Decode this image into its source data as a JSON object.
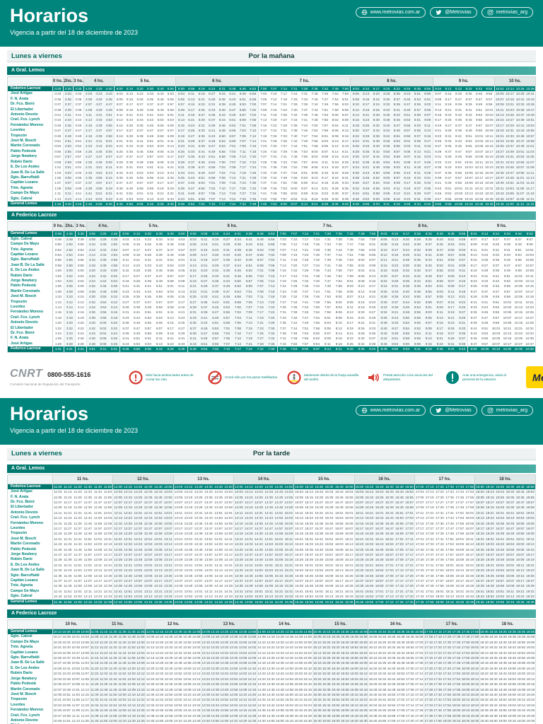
{
  "colors": {
    "teal": "#00857C",
    "yellow": "#FFD200",
    "navy": "#1b2347",
    "red": "#D63A2F"
  },
  "header": {
    "title": "Horarios",
    "subtitle": "Vigencia a partir del 18 de diciembre de 2023",
    "links": [
      {
        "icon": "globe-icon",
        "label": "www.metrovias.com.ar"
      },
      {
        "icon": "twitter-icon",
        "label": "@Metrovias"
      },
      {
        "icon": "instagram-icon",
        "label": "metrovias_arg"
      }
    ]
  },
  "day_label": "Lunes a viernes",
  "periods": [
    {
      "label": "Por la mañana"
    },
    {
      "label": "Por la tarde"
    }
  ],
  "stations": {
    "to_lemos": [
      "Federico Lacroze",
      "José Artigas",
      "F. N. Arata",
      "Dr. Fco. Beiró",
      "El Libertador",
      "Antonio Devoto",
      "Cnel. Fco. Lynch",
      "Fernández Moreno",
      "Lourdes",
      "Tropezón",
      "José M. Bosch",
      "Martín Coronado",
      "Pablo Podestá",
      "Jorge Newbery",
      "Rubén Darío",
      "E. De Los Andes",
      "Juan B. De La Salle",
      "Sgto. Barruffaldi",
      "Capitán Lozano",
      "Tnte. Agneta",
      "Campo De Mayo",
      "Sgto. Cabral",
      "General Lemos"
    ],
    "to_lacroze": [
      "General Lemos",
      "Sgto. Cabral",
      "Campo De Mayo",
      "Tnte. Agneta",
      "Capitán Lozano",
      "Sgto. Barruffaldi",
      "Juan B. De La Salle",
      "E. De Los Andes",
      "Rubén Darío",
      "Jorge Newbery",
      "Pablo Podestá",
      "Martín Coronado",
      "José M. Bosch",
      "Tropezón",
      "Lourdes",
      "Fernández Moreno",
      "Cnel. Fco. Lynch",
      "Antonio Devoto",
      "El Libertador",
      "Dr. Fco. Beiró",
      "F. N. Arata",
      "José Artigas",
      "Federico Lacroze"
    ]
  },
  "offsets_min": [
    0,
    3,
    5,
    7,
    9,
    11,
    13,
    15,
    17,
    19,
    21,
    23,
    25,
    27,
    29,
    31,
    33,
    35,
    37,
    39,
    41,
    43,
    46
  ],
  "tables": [
    {
      "direction": "A Gral. Lemos",
      "stations": "to_lemos",
      "hour_groups": [
        {
          "label": "0 hs.",
          "cols": 1
        },
        {
          "label": "2hs.",
          "cols": 1
        },
        {
          "label": "3 hs.",
          "cols": 1
        },
        {
          "label": "4 hs.",
          "cols": 3
        },
        {
          "label": "5 hs.",
          "cols": 6
        },
        {
          "label": "6 hs.",
          "cols": 8
        },
        {
          "label": "7 hs.",
          "cols": 9
        },
        {
          "label": "8 hs.",
          "cols": 8
        },
        {
          "label": "9 hs.",
          "cols": 6
        },
        {
          "label": "10 hs.",
          "cols": 4
        }
      ],
      "departures": [
        "0:30",
        "2:30",
        "3:30",
        "4:00",
        "4:20",
        "4:40",
        "5:00",
        "5:10",
        "5:20",
        "5:30",
        "5:40",
        "5:50",
        "6:00",
        "6:08",
        "6:16",
        "6:24",
        "6:31",
        "6:38",
        "6:46",
        "6:53",
        "7:00",
        "7:07",
        "7:14",
        "7:21",
        "7:28",
        "7:35",
        "7:42",
        "7:49",
        "7:56",
        "8:03",
        "8:10",
        "8:17",
        "8:25",
        "8:32",
        "8:40",
        "8:48",
        "8:56",
        "9:04",
        "9:12",
        "9:22",
        "9:32",
        "9:42",
        "9:52",
        "10:02",
        "10:14",
        "10:26",
        "10:38"
      ]
    },
    {
      "direction": "A Federico Lacroze",
      "stations": "to_lacroze",
      "hour_groups": [
        {
          "label": "0 hs.",
          "cols": 1
        },
        {
          "label": "2hs.",
          "cols": 1
        },
        {
          "label": "3 hs.",
          "cols": 1
        },
        {
          "label": "4 hs.",
          "cols": 3
        },
        {
          "label": "5 hs.",
          "cols": 6
        },
        {
          "label": "6 hs.",
          "cols": 8
        },
        {
          "label": "7 hs.",
          "cols": 9
        },
        {
          "label": "8 hs.",
          "cols": 8
        },
        {
          "label": "9 hs.",
          "cols": 6
        }
      ],
      "departures": [
        "0:45",
        "2:45",
        "3:45",
        "4:05",
        "4:25",
        "4:45",
        "5:00",
        "5:10",
        "5:20",
        "5:30",
        "5:40",
        "5:50",
        "6:00",
        "6:08",
        "6:16",
        "6:24",
        "6:31",
        "6:38",
        "6:46",
        "6:53",
        "7:00",
        "7:07",
        "7:14",
        "7:21",
        "7:28",
        "7:35",
        "7:42",
        "7:49",
        "7:56",
        "8:03",
        "8:10",
        "8:17",
        "8:25",
        "8:32",
        "8:40",
        "8:48",
        "8:56",
        "9:04",
        "9:14",
        "9:24",
        "9:34",
        "9:44",
        "9:54"
      ]
    },
    {
      "direction": "A Gral. Lemos",
      "stations": "to_lemos",
      "hour_groups": [
        {
          "label": "11 hs.",
          "cols": 6
        },
        {
          "label": "12 hs.",
          "cols": 6
        },
        {
          "label": "13 hs.",
          "cols": 6
        },
        {
          "label": "14 hs.",
          "cols": 6
        },
        {
          "label": "15 hs.",
          "cols": 6
        },
        {
          "label": "16 hs.",
          "cols": 6
        },
        {
          "label": "17 hs.",
          "cols": 6
        },
        {
          "label": "18 hs.",
          "cols": 6
        }
      ],
      "departures": [
        "11:00",
        "11:10",
        "11:20",
        "11:30",
        "11:40",
        "11:50",
        "12:00",
        "12:10",
        "12:20",
        "12:30",
        "12:40",
        "12:50",
        "13:00",
        "13:10",
        "13:20",
        "13:30",
        "13:40",
        "13:50",
        "14:00",
        "14:10",
        "14:20",
        "14:30",
        "14:40",
        "14:50",
        "15:00",
        "15:10",
        "15:20",
        "15:30",
        "15:40",
        "15:50",
        "16:00",
        "16:10",
        "16:20",
        "16:30",
        "16:40",
        "16:50",
        "17:00",
        "17:10",
        "17:20",
        "17:30",
        "17:40",
        "17:50",
        "18:00",
        "18:10",
        "18:20",
        "18:30",
        "18:40",
        "18:50"
      ]
    },
    {
      "direction": "A Federico Lacroze",
      "stations": "to_lacroze",
      "hour_groups": [
        {
          "label": "10 hs.",
          "cols": 4
        },
        {
          "label": "11 hs.",
          "cols": 6
        },
        {
          "label": "12 hs.",
          "cols": 6
        },
        {
          "label": "13 hs.",
          "cols": 6
        },
        {
          "label": "14 hs.",
          "cols": 6
        },
        {
          "label": "15 hs.",
          "cols": 6
        },
        {
          "label": "16 hs.",
          "cols": 6
        },
        {
          "label": "17 hs.",
          "cols": 6
        },
        {
          "label": "18 hs.",
          "cols": 6
        }
      ],
      "departures": [
        "10:14",
        "10:26",
        "10:38",
        "10:50",
        "11:05",
        "11:15",
        "11:25",
        "11:35",
        "11:45",
        "11:55",
        "12:05",
        "12:15",
        "12:25",
        "12:35",
        "12:45",
        "12:55",
        "13:05",
        "13:15",
        "13:25",
        "13:35",
        "13:45",
        "13:55",
        "14:05",
        "14:15",
        "14:25",
        "14:35",
        "14:45",
        "14:55",
        "15:05",
        "15:15",
        "15:25",
        "15:35",
        "15:45",
        "15:55",
        "16:05",
        "16:15",
        "16:25",
        "16:35",
        "16:45",
        "16:55",
        "17:05",
        "17:15",
        "17:25",
        "17:35",
        "17:45",
        "17:55",
        "18:05",
        "18:15",
        "18:25",
        "18:35",
        "18:45",
        "18:55"
      ]
    }
  ],
  "footer": {
    "cnrt_logo": "CNRT",
    "phone": "0800-555-1616",
    "cnrt_caption": "Comisión Nacional de Regulación del Transporte",
    "safety": [
      {
        "icon": "crossing-warning-icon",
        "text": "Mirá hacia ambos lados antes de cruzar las vías."
      },
      {
        "icon": "no-crossing-icon",
        "text": "Cruzá sólo por los pasos habilitados."
      },
      {
        "icon": "yellow-line-icon",
        "text": "Mantenete detrás de la franja amarilla del andén."
      },
      {
        "icon": "volume-icon",
        "text": "Prestá atención a los anuncios del altoparlante."
      },
      {
        "icon": "emergency-icon",
        "text": "Ante una emergencia, avisá al personal de la estación."
      }
    ],
    "brand": "Metrovías"
  }
}
